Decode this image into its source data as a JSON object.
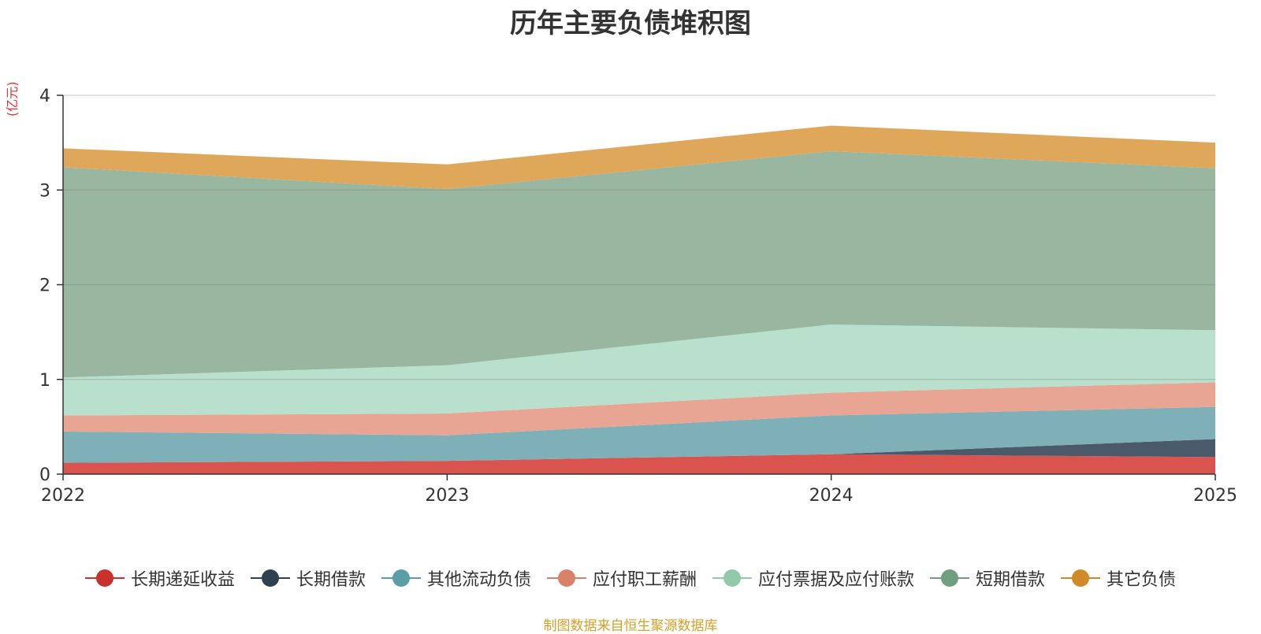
{
  "chart_data": {
    "type": "area",
    "stacked": true,
    "title": "历年主要负债堆积图",
    "ylabel": "(亿元)",
    "xlabel": "",
    "categories": [
      "2022",
      "2023",
      "2024",
      "2025"
    ],
    "ylim": [
      0,
      4
    ],
    "yticks": [
      "0",
      "1",
      "2",
      "3",
      "4"
    ],
    "grid": true,
    "legend_position": "bottom",
    "series": [
      {
        "name": "长期递延收益",
        "values": [
          0.12,
          0.14,
          0.21,
          0.18
        ],
        "color": "#d9534f",
        "legend_color": "#c8312c"
      },
      {
        "name": "长期借款",
        "values": [
          0.0,
          0.0,
          0.0,
          0.19
        ],
        "color": "#4a5a6a",
        "legend_color": "#2e4150"
      },
      {
        "name": "其他流动负债",
        "values": [
          0.33,
          0.27,
          0.41,
          0.34
        ],
        "color": "#7fb0b8",
        "legend_color": "#5b9ea6"
      },
      {
        "name": "应付职工薪酬",
        "values": [
          0.17,
          0.23,
          0.24,
          0.26
        ],
        "color": "#e8a593",
        "legend_color": "#d9826a"
      },
      {
        "name": "应付票据及应付账款",
        "values": [
          0.4,
          0.51,
          0.72,
          0.55
        ],
        "color": "#b8e0cc",
        "legend_color": "#92caa8"
      },
      {
        "name": "短期借款",
        "values": [
          2.22,
          1.86,
          1.83,
          1.71
        ],
        "color": "#98b6a0",
        "legend_color": "#6f9e80"
      },
      {
        "name": "其它负债",
        "values": [
          0.2,
          0.26,
          0.27,
          0.27
        ],
        "color": "#dfa75a",
        "legend_color": "#d08a28"
      }
    ]
  },
  "footer": {
    "source": "制图数据来自恒生聚源数据库"
  }
}
